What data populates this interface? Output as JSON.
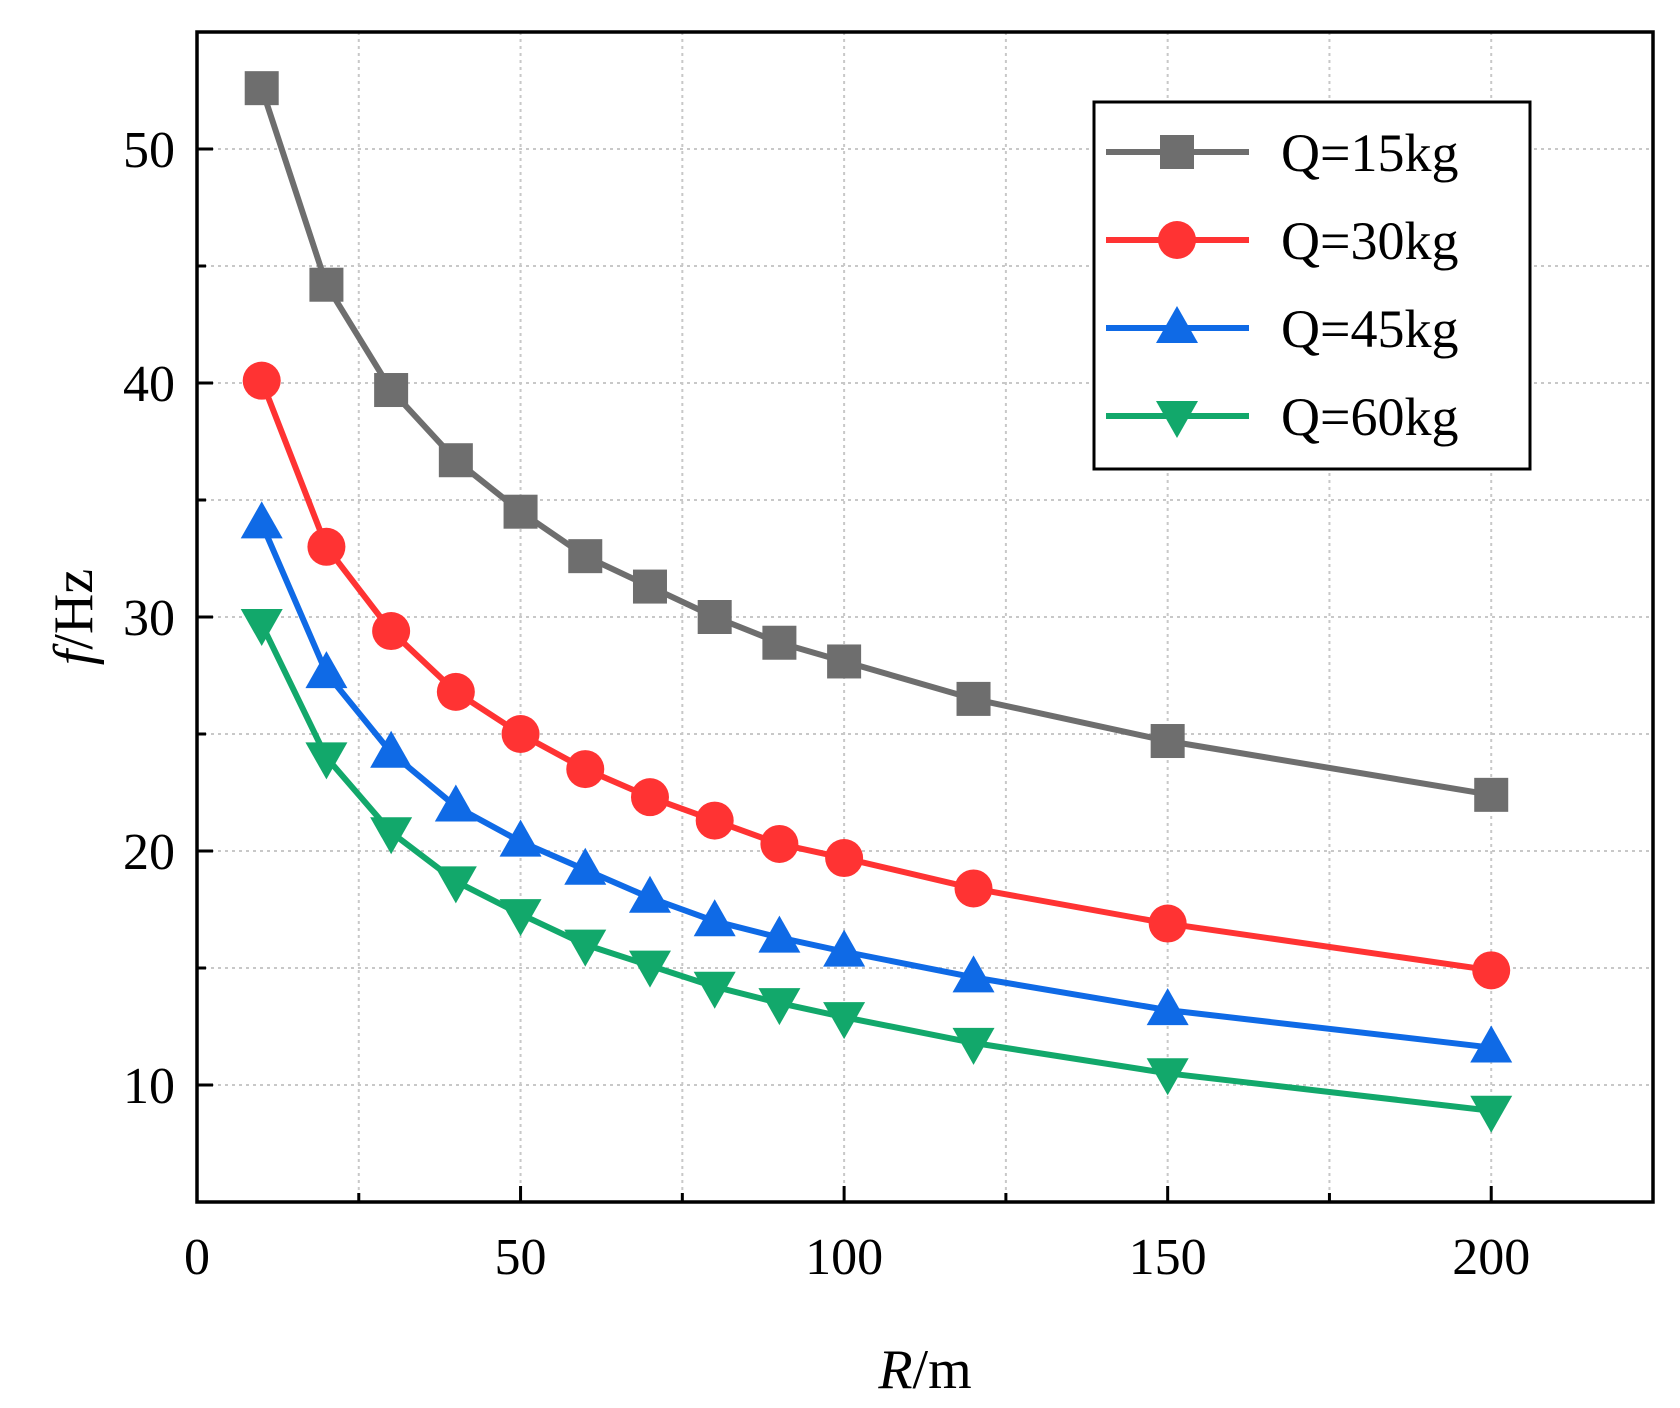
{
  "chart_data": {
    "type": "line",
    "title": "",
    "xlabel": {
      "italic": "R",
      "rest": "/m"
    },
    "ylabel": {
      "italic": "f",
      "rest": "/Hz"
    },
    "xlim": [
      0,
      225
    ],
    "ylim": [
      5,
      55
    ],
    "xticks": [
      0,
      50,
      100,
      150,
      200
    ],
    "yticks": [
      10,
      20,
      30,
      40,
      50
    ],
    "grid": true,
    "legend_position": "top-right",
    "x": [
      10,
      20,
      30,
      40,
      50,
      60,
      70,
      80,
      90,
      100,
      120,
      150,
      200
    ],
    "series": [
      {
        "name": "Q=15kg",
        "color": "#6e6e6e",
        "marker": "square",
        "values": [
          52.6,
          44.2,
          39.7,
          36.7,
          34.5,
          32.6,
          31.3,
          30.0,
          28.9,
          28.1,
          26.5,
          24.7,
          22.4
        ]
      },
      {
        "name": "Q=30kg",
        "color": "#ff3333",
        "marker": "circle",
        "values": [
          40.1,
          33.0,
          29.4,
          26.8,
          25.0,
          23.5,
          22.3,
          21.3,
          20.3,
          19.7,
          18.4,
          16.9,
          14.9
        ]
      },
      {
        "name": "Q=45kg",
        "color": "#0f6ae6",
        "marker": "triangle-up",
        "values": [
          34.0,
          27.6,
          24.2,
          21.9,
          20.4,
          19.2,
          18.0,
          17.0,
          16.3,
          15.7,
          14.6,
          13.2,
          11.6
        ]
      },
      {
        "name": "Q=60kg",
        "color": "#12a86b",
        "marker": "triangle-down",
        "values": [
          29.7,
          24.0,
          20.8,
          18.7,
          17.3,
          16.0,
          15.1,
          14.2,
          13.5,
          12.9,
          11.8,
          10.5,
          8.9
        ]
      }
    ]
  }
}
